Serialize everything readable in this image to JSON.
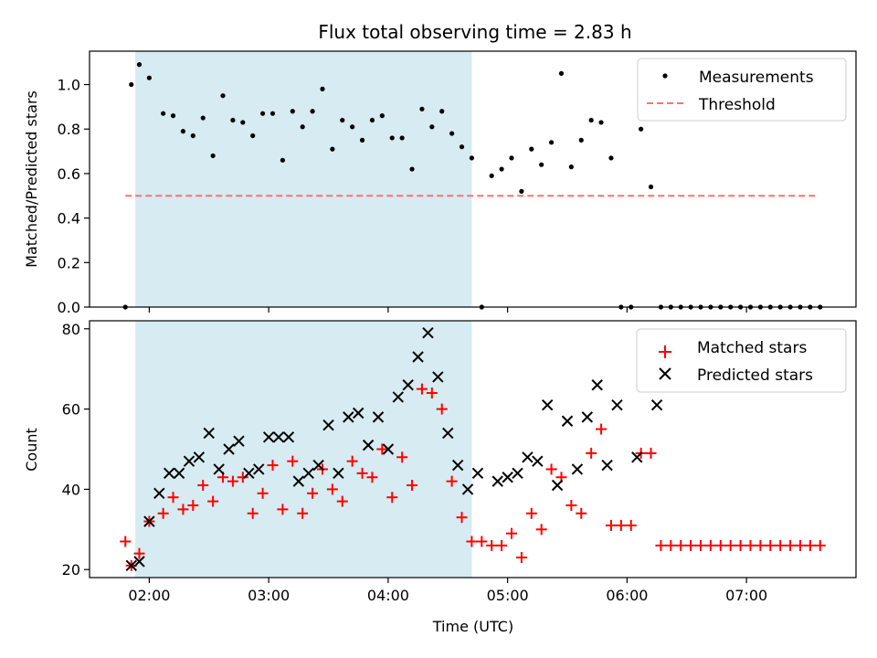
{
  "chart_data": [
    {
      "type": "scatter",
      "title": "Flux total observing time = 2.83 h",
      "xlabel": "",
      "ylabel": "Matched/Predicted stars",
      "xlim": [
        "01:30",
        "07:55"
      ],
      "ylim": [
        0,
        1.15
      ],
      "yticks": [
        0.0,
        0.2,
        0.4,
        0.6,
        0.8,
        1.0
      ],
      "yticklabels": [
        "0.0",
        "0.2",
        "0.4",
        "0.6",
        "0.8",
        "1.0"
      ],
      "shaded_region": {
        "x": [
          "01:53",
          "04:42"
        ],
        "color": "#add8e6"
      },
      "legend": {
        "position": "top-right",
        "entries": [
          "Measurements",
          "Threshold"
        ]
      },
      "series": [
        {
          "name": "Measurements",
          "marker": "dot",
          "color": "#000000",
          "x": [
            "01:48",
            "01:51",
            "01:55",
            "02:00",
            "02:07",
            "02:12",
            "02:17",
            "02:22",
            "02:27",
            "02:32",
            "02:37",
            "02:42",
            "02:47",
            "02:52",
            "02:57",
            "03:02",
            "03:07",
            "03:12",
            "03:17",
            "03:22",
            "03:27",
            "03:32",
            "03:37",
            "03:42",
            "03:47",
            "03:52",
            "03:57",
            "04:02",
            "04:07",
            "04:12",
            "04:17",
            "04:22",
            "04:27",
            "04:32",
            "04:37",
            "04:42",
            "04:47",
            "04:52",
            "04:57",
            "05:02",
            "05:07",
            "05:12",
            "05:17",
            "05:22",
            "05:27",
            "05:32",
            "05:37",
            "05:42",
            "05:47",
            "05:52",
            "05:57",
            "06:02",
            "06:07",
            "06:12",
            "06:17",
            "06:22",
            "06:27",
            "06:32",
            "06:37",
            "06:42",
            "06:47",
            "06:52",
            "06:57",
            "07:02",
            "07:07",
            "07:12",
            "07:17",
            "07:22",
            "07:27",
            "07:32",
            "07:37"
          ],
          "y": [
            0.0,
            1.0,
            1.09,
            1.03,
            0.87,
            0.86,
            0.79,
            0.77,
            0.85,
            0.68,
            0.95,
            0.84,
            0.83,
            0.77,
            0.87,
            0.87,
            0.66,
            0.88,
            0.81,
            0.88,
            0.98,
            0.71,
            0.84,
            0.81,
            0.75,
            0.84,
            0.86,
            0.76,
            0.76,
            0.62,
            0.89,
            0.81,
            0.88,
            0.78,
            0.72,
            0.67,
            0.0,
            0.59,
            0.62,
            0.67,
            0.52,
            0.71,
            0.64,
            0.74,
            1.05,
            0.63,
            0.75,
            0.84,
            0.83,
            0.67,
            0.0,
            0.0,
            0.8,
            0.54,
            0.0,
            0.0,
            0.0,
            0.0,
            0.0,
            0.0,
            0.0,
            0.0,
            0.0,
            0.0,
            0.0,
            0.0,
            0.0,
            0.0,
            0.0,
            0.0,
            0.0
          ]
        },
        {
          "name": "Threshold",
          "style": "dashed",
          "color": "#ff7070",
          "x": [
            "01:48",
            "07:35"
          ],
          "y": [
            0.5,
            0.5
          ]
        }
      ]
    },
    {
      "type": "scatter",
      "title": "",
      "xlabel": "Time (UTC)",
      "ylabel": "Count",
      "xlim": [
        "01:30",
        "07:55"
      ],
      "ylim": [
        18,
        82
      ],
      "xticks": [
        "02:00",
        "03:00",
        "04:00",
        "05:00",
        "06:00",
        "07:00"
      ],
      "yticks": [
        20,
        40,
        60,
        80
      ],
      "shaded_region": {
        "x": [
          "01:53",
          "04:42"
        ],
        "color": "#add8e6"
      },
      "legend": {
        "position": "top-right",
        "entries": [
          "Matched stars",
          "Predicted stars"
        ]
      },
      "series": [
        {
          "name": "Matched stars",
          "marker": "plus",
          "color": "#ff0000",
          "x": [
            "01:48",
            "01:51",
            "01:55",
            "02:00",
            "02:07",
            "02:12",
            "02:17",
            "02:22",
            "02:27",
            "02:32",
            "02:37",
            "02:42",
            "02:47",
            "02:52",
            "02:57",
            "03:02",
            "03:07",
            "03:12",
            "03:17",
            "03:22",
            "03:27",
            "03:32",
            "03:37",
            "03:42",
            "03:47",
            "03:52",
            "03:57",
            "04:02",
            "04:07",
            "04:12",
            "04:17",
            "04:22",
            "04:27",
            "04:32",
            "04:37",
            "04:42",
            "04:47",
            "04:52",
            "04:57",
            "05:02",
            "05:07",
            "05:12",
            "05:17",
            "05:22",
            "05:27",
            "05:32",
            "05:37",
            "05:42",
            "05:47",
            "05:52",
            "05:57",
            "06:02",
            "06:07",
            "06:12",
            "06:17",
            "06:22",
            "06:27",
            "06:32",
            "06:37",
            "06:42",
            "06:47",
            "06:52",
            "06:57",
            "07:02",
            "07:07",
            "07:12",
            "07:17",
            "07:22",
            "07:27",
            "07:32",
            "07:37"
          ],
          "y": [
            27,
            21,
            24,
            32,
            34,
            38,
            35,
            36,
            41,
            37,
            43,
            42,
            43,
            34,
            39,
            46,
            35,
            47,
            34,
            39,
            45,
            40,
            37,
            47,
            44,
            43,
            50,
            38,
            48,
            41,
            65,
            64,
            60,
            42,
            33,
            27,
            27,
            26,
            26,
            29,
            23,
            34,
            30,
            45,
            43,
            36,
            34,
            49,
            55,
            31,
            31,
            31,
            49,
            49,
            26,
            26,
            26,
            26,
            26,
            26,
            26,
            26,
            26,
            26,
            26,
            26,
            26,
            26,
            26,
            26,
            26
          ]
        },
        {
          "name": "Predicted stars",
          "marker": "x",
          "color": "#000000",
          "x": [
            "01:51",
            "01:55",
            "02:00",
            "02:05",
            "02:10",
            "02:15",
            "02:20",
            "02:25",
            "02:30",
            "02:35",
            "02:40",
            "02:45",
            "02:50",
            "02:55",
            "03:00",
            "03:05",
            "03:10",
            "03:15",
            "03:20",
            "03:25",
            "03:30",
            "03:35",
            "03:40",
            "03:45",
            "03:50",
            "03:55",
            "04:00",
            "04:05",
            "04:10",
            "04:15",
            "04:20",
            "04:25",
            "04:30",
            "04:35",
            "04:40",
            "04:45",
            "04:55",
            "05:00",
            "05:05",
            "05:10",
            "05:15",
            "05:20",
            "05:25",
            "05:30",
            "05:35",
            "05:40",
            "05:45",
            "05:50",
            "05:55",
            "06:05",
            "06:15"
          ],
          "y": [
            21,
            22,
            32,
            39,
            44,
            44,
            47,
            48,
            54,
            45,
            50,
            52,
            44,
            45,
            53,
            53,
            53,
            42,
            44,
            46,
            56,
            44,
            58,
            59,
            51,
            58,
            50,
            63,
            66,
            73,
            79,
            68,
            54,
            46,
            40,
            44,
            42,
            43,
            44,
            48,
            47,
            61,
            41,
            57,
            45,
            58,
            66,
            46,
            61,
            48,
            61
          ]
        }
      ]
    }
  ]
}
